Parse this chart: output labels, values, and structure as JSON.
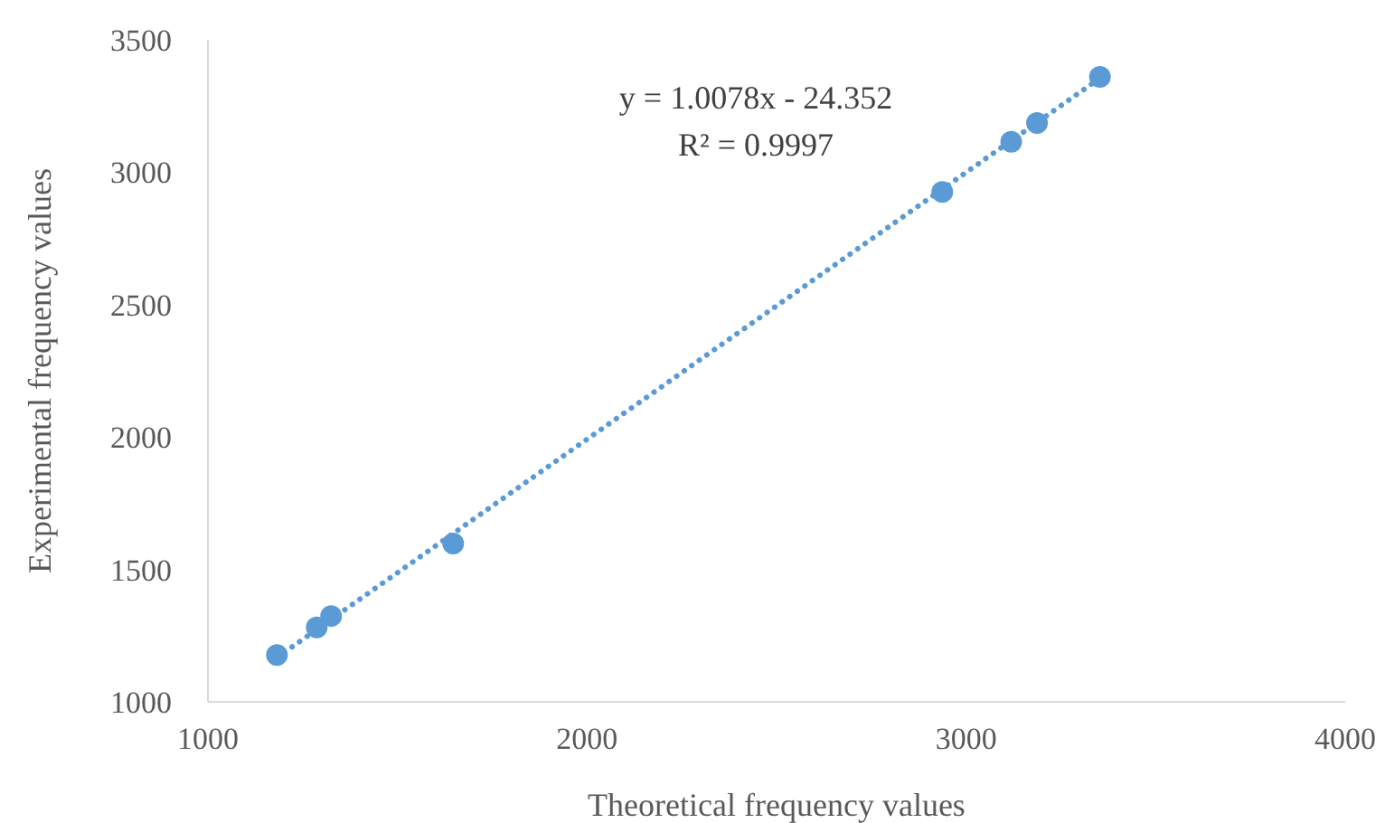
{
  "chart_data": {
    "type": "scatter",
    "xlabel": "Theoretical  frequency values",
    "ylabel": "Experimental frequency values",
    "xlim": [
      1000,
      4000
    ],
    "ylim": [
      1000,
      3500
    ],
    "xticks": [
      1000,
      2000,
      3000,
      4000
    ],
    "yticks": [
      1000,
      1500,
      2000,
      2500,
      3000,
      3500
    ],
    "grid": false,
    "annotations": [
      "y = 1.0078x - 24.352",
      "R² = 0.9997"
    ],
    "series": [
      {
        "color": "#5b9bd5",
        "marker": "circle",
        "x": [
          1182,
          1287,
          1325,
          1647,
          2937,
          3119,
          3187,
          3353
        ],
        "values": [
          1177,
          1281,
          1324,
          1598,
          2925,
          3115,
          3186,
          3360
        ]
      },
      {
        "type": "line",
        "color": "#5b9bd5",
        "line_style": "dotted",
        "marker": "none",
        "x": [
          1182,
          3353
        ],
        "values": [
          1167,
          3355
        ]
      }
    ]
  }
}
